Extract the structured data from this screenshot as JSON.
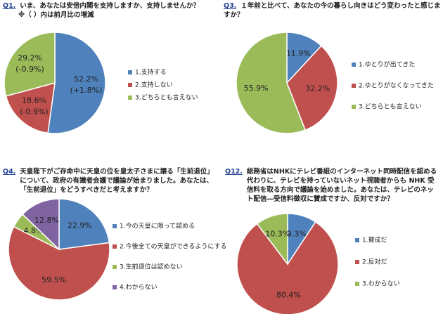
{
  "chart_data": [
    {
      "type": "pie",
      "label": "Q1.",
      "title": "いま、あなたは安倍内閣を支持しますか、支持しませんか？",
      "subtitle": "※（ ）内は前月比の増減",
      "categories": [
        "1.支持する",
        "2.支持しない",
        "3.どちらとも言えない"
      ],
      "values": [
        52.2,
        18.6,
        29.2
      ],
      "value_labels": [
        "52.2%",
        "18.6%",
        "29.2%"
      ],
      "change_labels": [
        "(+1.8%)",
        "(-0.9%)",
        "(-0.9%)"
      ],
      "colors": [
        "#4f81bd",
        "#c0504d",
        "#9bbb59"
      ]
    },
    {
      "type": "pie",
      "label": "Q3.",
      "title": "１年前と比べて、あなたの今の暮らし向きはどう変わったと感じますか？",
      "categories": [
        "1.ゆとりが出てきた",
        "2.ゆとりがなくなってきた",
        "3.どちらとも言えない"
      ],
      "values": [
        11.9,
        32.2,
        55.9
      ],
      "value_labels": [
        "11.9%",
        "32.2%",
        "55.9%"
      ],
      "colors": [
        "#4f81bd",
        "#c0504d",
        "#9bbb59"
      ]
    },
    {
      "type": "pie",
      "label": "Q4.",
      "title": "天皇陛下がご存命中に天皇の位を皇太子さまに譲る「生前退位」について、政府の有識者会議で議論が始まりました。あなたは、「生前退位」をどうすべきだと考えますか？",
      "categories": [
        "1.今の天皇に限って認める",
        "2.今後全ての天皇ができるようにする",
        "3.生前退位は認めない",
        "4.わからない"
      ],
      "values": [
        22.9,
        59.5,
        4.8,
        12.8
      ],
      "value_labels": [
        "22.9%",
        "59.5%",
        "4.8%",
        "12.8%"
      ],
      "colors": [
        "#4f81bd",
        "#c0504d",
        "#9bbb59",
        "#8064a2"
      ]
    },
    {
      "type": "pie",
      "label": "Q12.",
      "title": "総務省はNHKにテレビ番組のインターネット同時配信を認める代わりに、テレビを持っていないネット視聴者からも NHK 受信料を取る方向で議論を始めました。あなたは、テレビのネット配信―受信料徴収に賛成ですか、反対ですか？",
      "categories": [
        "1.賛成だ",
        "2.反対だ",
        "3.わからない"
      ],
      "values": [
        9.3,
        80.4,
        10.3
      ],
      "value_labels": [
        "9.3%",
        "80.4%",
        "10.3%"
      ],
      "colors": [
        "#4f81bd",
        "#c0504d",
        "#9bbb59"
      ]
    }
  ]
}
